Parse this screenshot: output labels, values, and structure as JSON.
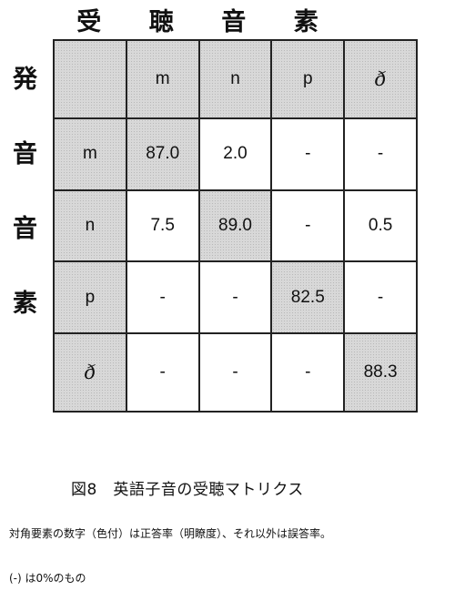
{
  "top_title_chars": [
    "受",
    "聴",
    "音",
    "素"
  ],
  "side_title_chars": [
    "発",
    "音",
    "音",
    "素"
  ],
  "matrix": {
    "header": [
      "",
      "m",
      "n",
      "p",
      "ð"
    ],
    "rows": [
      [
        "m",
        "87.0",
        "2.0",
        "-",
        "-"
      ],
      [
        "n",
        "7.5",
        "89.0",
        "-",
        "0.5"
      ],
      [
        "p",
        "-",
        "-",
        "82.5",
        "-"
      ],
      [
        "ð",
        "-",
        "-",
        "-",
        "88.3"
      ]
    ]
  },
  "colors": {
    "shaded": "#d8d8d8",
    "border": "#222222"
  },
  "caption": "図8　英語子音の受聴マトリクス",
  "note_line1": "対角要素の数字（色付）は正答率（明瞭度）、それ以外は誤答率。",
  "note_line2": "(-) は0%のもの"
}
